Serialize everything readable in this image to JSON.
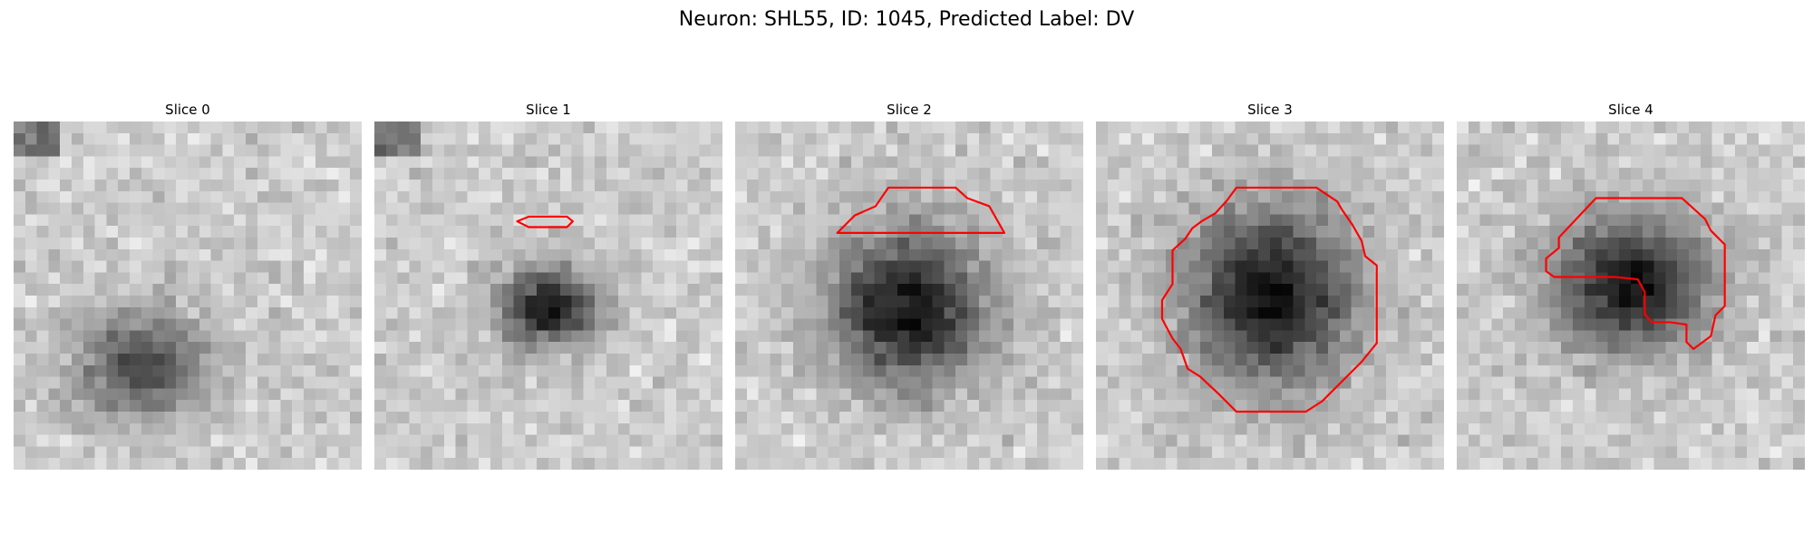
{
  "figure": {
    "title": "Neuron: SHL55, ID: 1045, Predicted Label: DV"
  },
  "panels": [
    {
      "title": "Slice 0"
    },
    {
      "title": "Slice 1"
    },
    {
      "title": "Slice 2"
    },
    {
      "title": "Slice 3"
    },
    {
      "title": "Slice 4"
    }
  ],
  "colors": {
    "contour": "#ff0000",
    "background": "#ffffff"
  }
}
